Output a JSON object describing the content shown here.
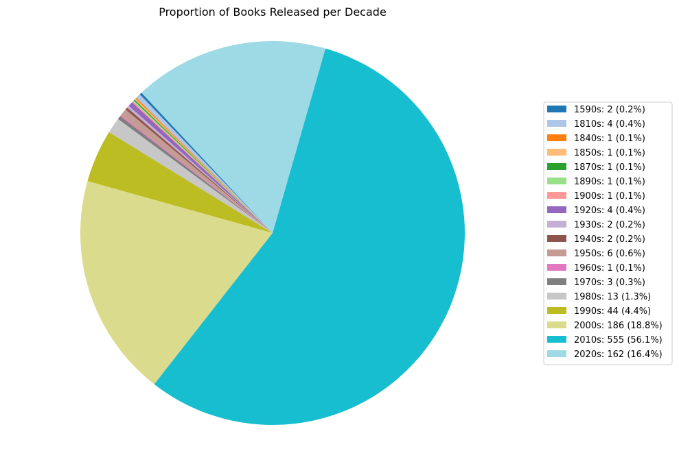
{
  "chart_data": {
    "type": "pie",
    "title": "Proportion of Books Released per Decade",
    "legend_position": "right",
    "start_angle_deg": 133,
    "direction": "counterclockwise",
    "slices": [
      {
        "label": "1590s",
        "value": 2,
        "pct": "0.2%",
        "legend": "1590s: 2 (0.2%)",
        "color": "#1f77b4"
      },
      {
        "label": "1810s",
        "value": 4,
        "pct": "0.4%",
        "legend": "1810s: 4 (0.4%)",
        "color": "#aec7e8"
      },
      {
        "label": "1840s",
        "value": 1,
        "pct": "0.1%",
        "legend": "1840s: 1 (0.1%)",
        "color": "#ff7f0e"
      },
      {
        "label": "1850s",
        "value": 1,
        "pct": "0.1%",
        "legend": "1850s: 1 (0.1%)",
        "color": "#ffbb78"
      },
      {
        "label": "1870s",
        "value": 1,
        "pct": "0.1%",
        "legend": "1870s: 1 (0.1%)",
        "color": "#2ca02c"
      },
      {
        "label": "1890s",
        "value": 1,
        "pct": "0.1%",
        "legend": "1890s: 1 (0.1%)",
        "color": "#98df8a"
      },
      {
        "label": "1900s",
        "value": 1,
        "pct": "0.1%",
        "legend": "1900s: 1 (0.1%)",
        "color": "#ff9896"
      },
      {
        "label": "1920s",
        "value": 4,
        "pct": "0.4%",
        "legend": "1920s: 4 (0.4%)",
        "color": "#9467bd"
      },
      {
        "label": "1930s",
        "value": 2,
        "pct": "0.2%",
        "legend": "1930s: 2 (0.2%)",
        "color": "#c5b0d5"
      },
      {
        "label": "1940s",
        "value": 2,
        "pct": "0.2%",
        "legend": "1940s: 2 (0.2%)",
        "color": "#8c564b"
      },
      {
        "label": "1950s",
        "value": 6,
        "pct": "0.6%",
        "legend": "1950s: 6 (0.6%)",
        "color": "#c49c94"
      },
      {
        "label": "1960s",
        "value": 1,
        "pct": "0.1%",
        "legend": "1960s: 1 (0.1%)",
        "color": "#e377c2"
      },
      {
        "label": "1970s",
        "value": 3,
        "pct": "0.3%",
        "legend": "1970s: 3 (0.3%)",
        "color": "#7f7f7f"
      },
      {
        "label": "1980s",
        "value": 13,
        "pct": "1.3%",
        "legend": "1980s: 13 (1.3%)",
        "color": "#c7c7c7"
      },
      {
        "label": "1990s",
        "value": 44,
        "pct": "4.4%",
        "legend": "1990s: 44 (4.4%)",
        "color": "#bcbd22"
      },
      {
        "label": "2000s",
        "value": 186,
        "pct": "18.8%",
        "legend": "2000s: 186 (18.8%)",
        "color": "#dbdb8d"
      },
      {
        "label": "2010s",
        "value": 555,
        "pct": "56.1%",
        "legend": "2010s: 555 (56.1%)",
        "color": "#17becf"
      },
      {
        "label": "2020s",
        "value": 162,
        "pct": "16.4%",
        "legend": "2020s: 162 (16.4%)",
        "color": "#9edae5"
      }
    ]
  }
}
